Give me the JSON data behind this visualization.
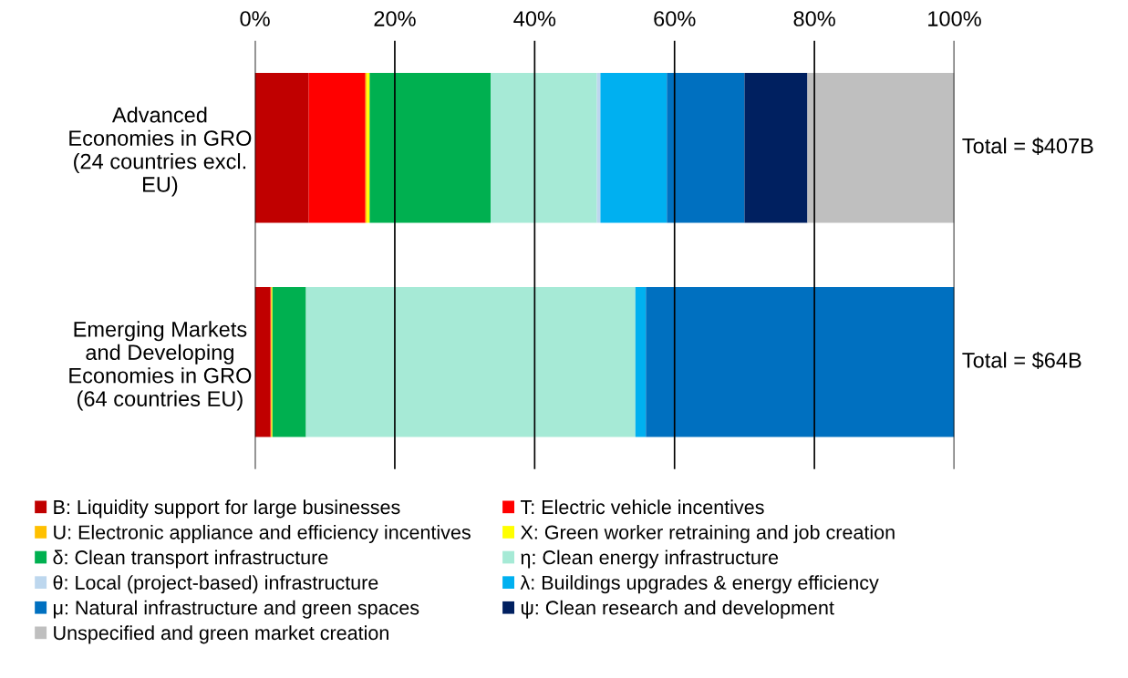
{
  "chart_data": {
    "type": "bar",
    "orientation": "horizontal",
    "stacked": true,
    "categories": [
      "Advanced\nEconomies in GRO\n(24 countries excl.\nEU)",
      "Emerging Markets\nand Developing\nEconomies in GRO\n(64 countries EU)"
    ],
    "series": [
      {
        "name": "B: Liquidity support for large businesses",
        "color": "#c00000",
        "values": [
          7.7,
          2.2
        ]
      },
      {
        "name": "T: Electric vehicle incentives",
        "color": "#ff0000",
        "values": [
          8.1,
          0.1
        ]
      },
      {
        "name": "U: Electronic appliance and efficiency incentives",
        "color": "#ffc000",
        "values": [
          0.2,
          0.1
        ]
      },
      {
        "name": "X: Green worker retraining and job creation",
        "color": "#ffff00",
        "values": [
          0.4,
          0.1
        ]
      },
      {
        "name": "δ: Clean transport infrastructure",
        "color": "#00b050",
        "values": [
          17.3,
          4.8
        ]
      },
      {
        "name": "η: Clean energy infrastructure",
        "color": "#a6ead6",
        "values": [
          15.2,
          47.1
        ]
      },
      {
        "name": "θ: Local (project-based) infrastructure",
        "color": "#bdd7ee",
        "values": [
          0.5,
          0
        ]
      },
      {
        "name": "λ: Buildings upgrades & energy efficiency",
        "color": "#00b0f0",
        "values": [
          9.5,
          1.5
        ]
      },
      {
        "name": "μ: Natural infrastructure and green spaces",
        "color": "#0070c0",
        "values": [
          11.1,
          44.1
        ]
      },
      {
        "name": "ψ: Clean research and development",
        "color": "#002060",
        "values": [
          9.0,
          0
        ]
      },
      {
        "name": "Unspecified and green market creation",
        "color": "#bfbfbf",
        "values": [
          21.0,
          0
        ]
      }
    ],
    "xlim": [
      0,
      100
    ],
    "xticks": [
      {
        "value": 0,
        "label": "0%"
      },
      {
        "value": 20,
        "label": "20%"
      },
      {
        "value": 40,
        "label": "40%"
      },
      {
        "value": 60,
        "label": "60%"
      },
      {
        "value": 80,
        "label": "80%"
      },
      {
        "value": 100,
        "label": "100%"
      }
    ],
    "annotations": [
      {
        "text": "Total = $407B",
        "x": 100,
        "y": "Advanced\nEconomies in GRO\n(24 countries excl.\nEU)"
      },
      {
        "text": "Total = $64B",
        "x": 100,
        "y": "Emerging Markets\nand Developing\nEconomies in GRO\n(64 countries EU)"
      }
    ],
    "grid": "x",
    "legend": "bottom"
  }
}
